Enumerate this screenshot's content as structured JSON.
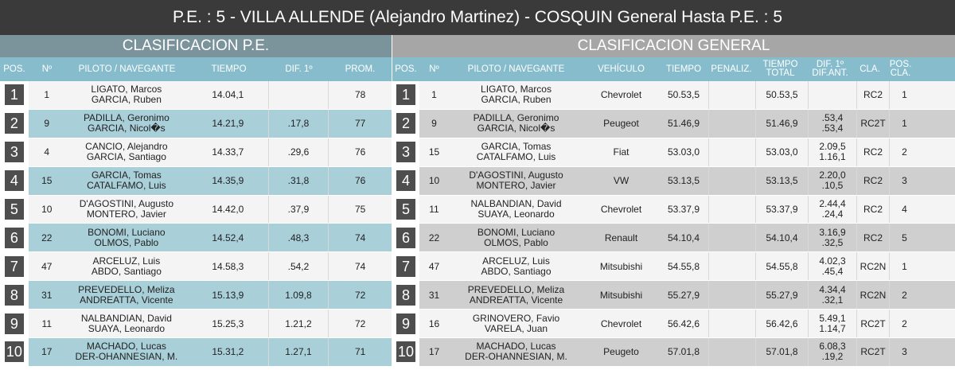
{
  "title": "P.E. : 5 - VILLA ALLENDE (Alejandro Martinez) - COSQUIN General Hasta P.E. : 5",
  "stage": {
    "heading": "CLASIFICACION P.E.",
    "columns": {
      "pos": "POS.",
      "num": "Nº",
      "pilot": "PILOTO / NAVEGANTE",
      "time": "TIEMPO",
      "diff": "DIF. 1º",
      "avg": "PROM."
    },
    "rows": [
      {
        "pos": "1",
        "num": "1",
        "pilot": "LIGATO, Marcos",
        "nav": "GARCIA, Ruben",
        "time": "14.04,1",
        "diff": "",
        "avg": "78"
      },
      {
        "pos": "2",
        "num": "9",
        "pilot": "PADILLA, Geronimo",
        "nav": "GARCIA, Nicol�s",
        "time": "14.21,9",
        "diff": ".17,8",
        "avg": "77"
      },
      {
        "pos": "3",
        "num": "4",
        "pilot": "CANCIO, Alejandro",
        "nav": "GARCIA, Santiago",
        "time": "14.33,7",
        "diff": ".29,6",
        "avg": "76"
      },
      {
        "pos": "4",
        "num": "15",
        "pilot": "GARCIA, Tomas",
        "nav": "CATALFAMO, Luis",
        "time": "14.35,9",
        "diff": ".31,8",
        "avg": "76"
      },
      {
        "pos": "5",
        "num": "10",
        "pilot": "D'AGOSTINI, Augusto",
        "nav": "MONTERO, Javier",
        "time": "14.42,0",
        "diff": ".37,9",
        "avg": "75"
      },
      {
        "pos": "6",
        "num": "22",
        "pilot": "BONOMI, Luciano",
        "nav": "OLMOS, Pablo",
        "time": "14.52,4",
        "diff": ".48,3",
        "avg": "74"
      },
      {
        "pos": "7",
        "num": "47",
        "pilot": "ARCELUZ, Luis",
        "nav": "ABDO, Santiago",
        "time": "14.58,3",
        "diff": ".54,2",
        "avg": "74"
      },
      {
        "pos": "8",
        "num": "31",
        "pilot": "PREVEDELLO, Meliza",
        "nav": "ANDREATTA, Vicente",
        "time": "15.13,9",
        "diff": "1.09,8",
        "avg": "72"
      },
      {
        "pos": "9",
        "num": "11",
        "pilot": "NALBANDIAN, David",
        "nav": "SUAYA, Leonardo",
        "time": "15.25,3",
        "diff": "1.21,2",
        "avg": "72"
      },
      {
        "pos": "10",
        "num": "17",
        "pilot": "MACHADO, Lucas",
        "nav": "DER-OHANNESIAN, M.",
        "time": "15.31,2",
        "diff": "1.27,1",
        "avg": "71"
      }
    ]
  },
  "general": {
    "heading": "CLASIFICACION GENERAL",
    "columns": {
      "pos": "POS.",
      "num": "Nº",
      "pilot": "PILOTO / NAVEGANTE",
      "vehicle": "VEHÍCULO",
      "time": "TIEMPO",
      "penalty": "PENALIZ.",
      "total1": "TIEMPO",
      "total2": "TOTAL",
      "diff1": "DIF. 1º",
      "diff2": "DIF.ANT.",
      "cla": "CLA.",
      "poscla1": "POS.",
      "poscla2": "CLA."
    },
    "rows": [
      {
        "pos": "1",
        "num": "1",
        "pilot": "LIGATO, Marcos",
        "nav": "GARCIA, Ruben",
        "vehicle": "Chevrolet",
        "time": "50.53,5",
        "penalty": "",
        "total": "50.53,5",
        "diff1": "",
        "diff2": "",
        "cla": "RC2",
        "poscla": "1"
      },
      {
        "pos": "2",
        "num": "9",
        "pilot": "PADILLA, Geronimo",
        "nav": "GARCIA, Nicol�s",
        "vehicle": "Peugeot",
        "time": "51.46,9",
        "penalty": "",
        "total": "51.46,9",
        "diff1": ".53,4",
        "diff2": ".53,4",
        "cla": "RC2T",
        "poscla": "1"
      },
      {
        "pos": "3",
        "num": "15",
        "pilot": "GARCIA, Tomas",
        "nav": "CATALFAMO, Luis",
        "vehicle": "Fiat",
        "time": "53.03,0",
        "penalty": "",
        "total": "53.03,0",
        "diff1": "2.09,5",
        "diff2": "1.16,1",
        "cla": "RC2",
        "poscla": "2"
      },
      {
        "pos": "4",
        "num": "10",
        "pilot": "D'AGOSTINI, Augusto",
        "nav": "MONTERO, Javier",
        "vehicle": "VW",
        "time": "53.13,5",
        "penalty": "",
        "total": "53.13,5",
        "diff1": "2.20,0",
        "diff2": ".10,5",
        "cla": "RC2",
        "poscla": "3"
      },
      {
        "pos": "5",
        "num": "11",
        "pilot": "NALBANDIAN, David",
        "nav": "SUAYA, Leonardo",
        "vehicle": "Chevrolet",
        "time": "53.37,9",
        "penalty": "",
        "total": "53.37,9",
        "diff1": "2.44,4",
        "diff2": ".24,4",
        "cla": "RC2",
        "poscla": "4"
      },
      {
        "pos": "6",
        "num": "22",
        "pilot": "BONOMI, Luciano",
        "nav": "OLMOS, Pablo",
        "vehicle": "Renault",
        "time": "54.10,4",
        "penalty": "",
        "total": "54.10,4",
        "diff1": "3.16,9",
        "diff2": ".32,5",
        "cla": "RC2",
        "poscla": "5"
      },
      {
        "pos": "7",
        "num": "47",
        "pilot": "ARCELUZ, Luis",
        "nav": "ABDO, Santiago",
        "vehicle": "Mitsubishi",
        "time": "54.55,8",
        "penalty": "",
        "total": "54.55,8",
        "diff1": "4.02,3",
        "diff2": ".45,4",
        "cla": "RC2N",
        "poscla": "1"
      },
      {
        "pos": "8",
        "num": "31",
        "pilot": "PREVEDELLO, Meliza",
        "nav": "ANDREATTA, Vicente",
        "vehicle": "Mitsubishi",
        "time": "55.27,9",
        "penalty": "",
        "total": "55.27,9",
        "diff1": "4.34,4",
        "diff2": ".32,1",
        "cla": "RC2N",
        "poscla": "2"
      },
      {
        "pos": "9",
        "num": "16",
        "pilot": "GRINOVERO, Favio",
        "nav": "VARELA, Juan",
        "vehicle": "Chevrolet",
        "time": "56.42,6",
        "penalty": "",
        "total": "56.42,6",
        "diff1": "5.49,1",
        "diff2": "1.14,7",
        "cla": "RC2T",
        "poscla": "2"
      },
      {
        "pos": "10",
        "num": "17",
        "pilot": "MACHADO, Lucas",
        "nav": "DER-OHANNESIAN, M.",
        "vehicle": "Peugeto",
        "time": "57.01,8",
        "penalty": "",
        "total": "57.01,8",
        "diff1": "6.08,3",
        "diff2": ".19,2",
        "cla": "RC2T",
        "poscla": "3"
      }
    ]
  }
}
